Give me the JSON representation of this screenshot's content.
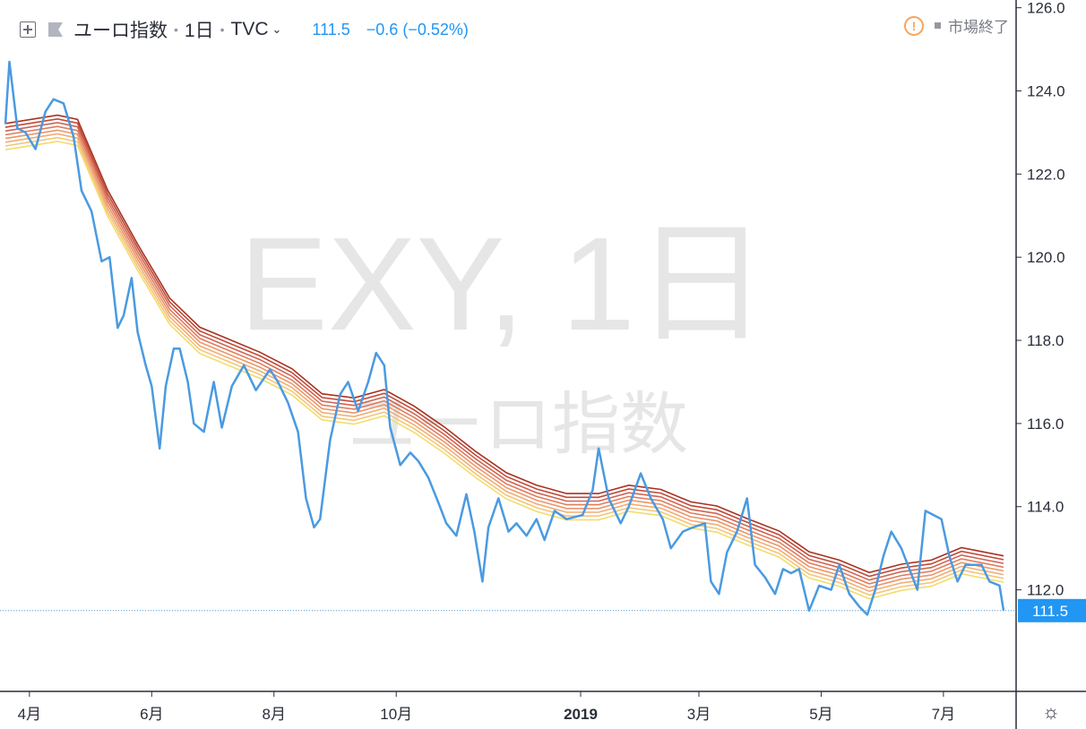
{
  "header": {
    "symbol_name": "ユーロ指数",
    "interval": "1日",
    "exchange": "TVC",
    "last_value": "111.5",
    "change": "−0.6 (−0.52%)",
    "market_status": "市場終了",
    "icons": [
      "add-symbol-icon",
      "flag-icon",
      "dropdown-chevron-icon",
      "warning-icon",
      "settings-gear-icon"
    ]
  },
  "watermark": {
    "line1": "EXY, 1日",
    "line2": "ユーロ指数"
  },
  "price_label": "111.5",
  "colors": {
    "price_line": "#4a9ae1",
    "price_label_bg": "#2196f3",
    "ribbon_fast": "#f3dc6b",
    "ribbon_slow": "#a8321f"
  },
  "chart_data": {
    "type": "line",
    "x_labels": [
      "4月",
      "6月",
      "8月",
      "10月",
      "2019",
      "3月",
      "5月",
      "7月"
    ],
    "y_ticks": [
      "126.0",
      "124.0",
      "122.0",
      "120.0",
      "118.0",
      "116.0",
      "114.0",
      "112.0"
    ],
    "ylim": [
      109.6,
      126.1
    ],
    "grid": false,
    "series": [
      {
        "name": "",
        "role": "price",
        "points": [
          [
            "2018-03-20",
            123.2
          ],
          [
            "2018-03-22",
            124.7
          ],
          [
            "2018-03-26",
            123.1
          ],
          [
            "2018-03-30",
            123.0
          ],
          [
            "2018-04-04",
            122.6
          ],
          [
            "2018-04-09",
            123.5
          ],
          [
            "2018-04-13",
            123.8
          ],
          [
            "2018-04-18",
            123.7
          ],
          [
            "2018-04-23",
            122.9
          ],
          [
            "2018-04-27",
            121.6
          ],
          [
            "2018-05-02",
            121.1
          ],
          [
            "2018-05-07",
            119.9
          ],
          [
            "2018-05-11",
            120.0
          ],
          [
            "2018-05-15",
            118.3
          ],
          [
            "2018-05-18",
            118.6
          ],
          [
            "2018-05-22",
            119.5
          ],
          [
            "2018-05-25",
            118.2
          ],
          [
            "2018-05-29",
            117.4
          ],
          [
            "2018-06-01",
            116.9
          ],
          [
            "2018-06-05",
            115.4
          ],
          [
            "2018-06-08",
            116.9
          ],
          [
            "2018-06-12",
            117.8
          ],
          [
            "2018-06-15",
            117.8
          ],
          [
            "2018-06-19",
            117.0
          ],
          [
            "2018-06-22",
            116.0
          ],
          [
            "2018-06-27",
            115.8
          ],
          [
            "2018-07-02",
            117.0
          ],
          [
            "2018-07-06",
            115.9
          ],
          [
            "2018-07-11",
            116.9
          ],
          [
            "2018-07-17",
            117.4
          ],
          [
            "2018-07-23",
            116.8
          ],
          [
            "2018-07-30",
            117.3
          ],
          [
            "2018-08-03",
            117.0
          ],
          [
            "2018-08-08",
            116.5
          ],
          [
            "2018-08-13",
            115.8
          ],
          [
            "2018-08-17",
            114.2
          ],
          [
            "2018-08-21",
            113.5
          ],
          [
            "2018-08-24",
            113.7
          ],
          [
            "2018-08-29",
            115.6
          ],
          [
            "2018-09-03",
            116.7
          ],
          [
            "2018-09-07",
            117.0
          ],
          [
            "2018-09-12",
            116.3
          ],
          [
            "2018-09-17",
            117.0
          ],
          [
            "2018-09-21",
            117.7
          ],
          [
            "2018-09-25",
            117.4
          ],
          [
            "2018-09-28",
            115.9
          ],
          [
            "2018-10-03",
            115.0
          ],
          [
            "2018-10-08",
            115.3
          ],
          [
            "2018-10-12",
            115.1
          ],
          [
            "2018-10-17",
            114.7
          ],
          [
            "2018-10-22",
            114.1
          ],
          [
            "2018-10-26",
            113.6
          ],
          [
            "2018-10-31",
            113.3
          ],
          [
            "2018-11-05",
            114.3
          ],
          [
            "2018-11-09",
            113.4
          ],
          [
            "2018-11-13",
            112.2
          ],
          [
            "2018-11-16",
            113.5
          ],
          [
            "2018-11-21",
            114.2
          ],
          [
            "2018-11-26",
            113.4
          ],
          [
            "2018-11-30",
            113.6
          ],
          [
            "2018-12-05",
            113.3
          ],
          [
            "2018-12-10",
            113.7
          ],
          [
            "2018-12-14",
            113.2
          ],
          [
            "2018-12-19",
            113.9
          ],
          [
            "2018-12-25",
            113.7
          ],
          [
            "2019-01-02",
            113.8
          ],
          [
            "2019-01-07",
            114.4
          ],
          [
            "2019-01-10",
            115.4
          ],
          [
            "2019-01-15",
            114.2
          ],
          [
            "2019-01-21",
            113.6
          ],
          [
            "2019-01-25",
            114.0
          ],
          [
            "2019-01-31",
            114.8
          ],
          [
            "2019-02-05",
            114.2
          ],
          [
            "2019-02-11",
            113.7
          ],
          [
            "2019-02-15",
            113.0
          ],
          [
            "2019-02-21",
            113.4
          ],
          [
            "2019-02-26",
            113.5
          ],
          [
            "2019-03-04",
            113.6
          ],
          [
            "2019-03-07",
            112.2
          ],
          [
            "2019-03-11",
            111.9
          ],
          [
            "2019-03-15",
            112.9
          ],
          [
            "2019-03-20",
            113.4
          ],
          [
            "2019-03-25",
            114.2
          ],
          [
            "2019-03-29",
            112.6
          ],
          [
            "2019-04-03",
            112.3
          ],
          [
            "2019-04-08",
            111.9
          ],
          [
            "2019-04-12",
            112.5
          ],
          [
            "2019-04-16",
            112.4
          ],
          [
            "2019-04-20",
            112.5
          ],
          [
            "2019-04-25",
            111.5
          ],
          [
            "2019-04-30",
            112.1
          ],
          [
            "2019-05-06",
            112.0
          ],
          [
            "2019-05-10",
            112.6
          ],
          [
            "2019-05-15",
            111.9
          ],
          [
            "2019-05-20",
            111.6
          ],
          [
            "2019-05-24",
            111.4
          ],
          [
            "2019-05-28",
            112.0
          ],
          [
            "2019-06-01",
            112.8
          ],
          [
            "2019-06-05",
            113.4
          ],
          [
            "2019-06-10",
            113.0
          ],
          [
            "2019-06-14",
            112.5
          ],
          [
            "2019-06-18",
            112.0
          ],
          [
            "2019-06-22",
            113.9
          ],
          [
            "2019-06-26",
            113.8
          ],
          [
            "2019-06-30",
            113.7
          ],
          [
            "2019-07-04",
            112.8
          ],
          [
            "2019-07-08",
            112.2
          ],
          [
            "2019-07-12",
            112.6
          ],
          [
            "2019-07-16",
            112.6
          ],
          [
            "2019-07-20",
            112.6
          ],
          [
            "2019-07-24",
            112.2
          ],
          [
            "2019-07-29",
            112.1
          ],
          [
            "2019-07-31",
            111.5
          ]
        ]
      },
      {
        "name": "",
        "role": "moving-average-ribbon",
        "points": [
          [
            "2018-03-20",
            122.9
          ],
          [
            "2018-04-15",
            123.1
          ],
          [
            "2018-04-25",
            123.0
          ],
          [
            "2018-05-10",
            121.3
          ],
          [
            "2018-05-25",
            120.0
          ],
          [
            "2018-06-10",
            118.7
          ],
          [
            "2018-06-25",
            118.0
          ],
          [
            "2018-07-10",
            117.7
          ],
          [
            "2018-07-25",
            117.4
          ],
          [
            "2018-08-10",
            117.0
          ],
          [
            "2018-08-25",
            116.4
          ],
          [
            "2018-09-10",
            116.3
          ],
          [
            "2018-09-25",
            116.5
          ],
          [
            "2018-10-10",
            116.1
          ],
          [
            "2018-10-25",
            115.6
          ],
          [
            "2018-11-10",
            115.0
          ],
          [
            "2018-11-25",
            114.5
          ],
          [
            "2018-12-10",
            114.2
          ],
          [
            "2018-12-25",
            114.0
          ],
          [
            "2019-01-10",
            114.0
          ],
          [
            "2019-01-25",
            114.2
          ],
          [
            "2019-02-10",
            114.1
          ],
          [
            "2019-02-25",
            113.8
          ],
          [
            "2019-03-10",
            113.7
          ],
          [
            "2019-03-25",
            113.4
          ],
          [
            "2019-04-10",
            113.1
          ],
          [
            "2019-04-25",
            112.6
          ],
          [
            "2019-05-10",
            112.4
          ],
          [
            "2019-05-25",
            112.1
          ],
          [
            "2019-06-10",
            112.3
          ],
          [
            "2019-06-25",
            112.4
          ],
          [
            "2019-07-10",
            112.7
          ],
          [
            "2019-07-31",
            112.5
          ]
        ]
      }
    ]
  }
}
